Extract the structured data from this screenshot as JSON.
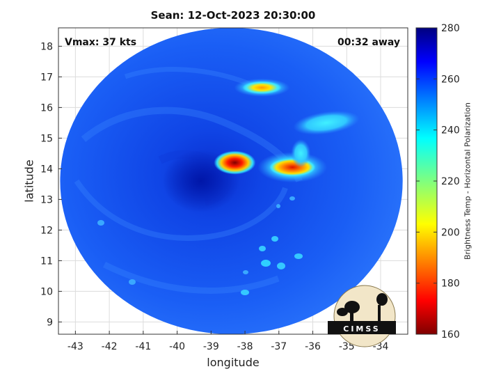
{
  "title": "Sean: 12-Oct-2023 20:30:00",
  "annotations": {
    "vmax": "Vmax: 37 kts",
    "away": "00:32 away"
  },
  "chart_data": {
    "type": "heatmap",
    "xlabel": "longitude",
    "ylabel": "latitude",
    "xlim": [
      -43.5,
      -33.2
    ],
    "ylim": [
      8.6,
      18.6
    ],
    "xticks": [
      -43,
      -42,
      -41,
      -40,
      -39,
      -38,
      -37,
      -36,
      -35,
      -34
    ],
    "yticks": [
      9,
      10,
      11,
      12,
      13,
      14,
      15,
      16,
      17,
      18
    ],
    "grid": true,
    "colorbar": {
      "label": "Brightness Temp - Horizontal Polarization",
      "min": 160,
      "max": 280,
      "ticks": [
        160,
        180,
        200,
        220,
        240,
        260,
        280
      ],
      "colormap": "jet"
    },
    "swath": {
      "center_lon": -38.4,
      "center_lat": 13.6,
      "radius_lon": 5.05,
      "radius_lat": 5.0
    },
    "features": [
      {
        "name": "storm-center",
        "lon": -39.3,
        "lat": 13.6,
        "tb": 258
      },
      {
        "name": "cold-cloud-core-1",
        "lon": -38.3,
        "lat": 14.2,
        "tb": 166
      },
      {
        "name": "cold-cloud-core-2",
        "lon": -36.6,
        "lat": 14.05,
        "tb": 188
      },
      {
        "name": "convection-north",
        "lon": -37.5,
        "lat": 16.65,
        "tb": 205
      },
      {
        "name": "warm-band-ne",
        "lon": -35.6,
        "lat": 15.5,
        "tb": 242
      }
    ]
  },
  "logo": {
    "text": "CIMSS"
  },
  "colors": {
    "background": "#1c5cf0",
    "axis": "#333333",
    "grid": "#d9d9d9"
  }
}
